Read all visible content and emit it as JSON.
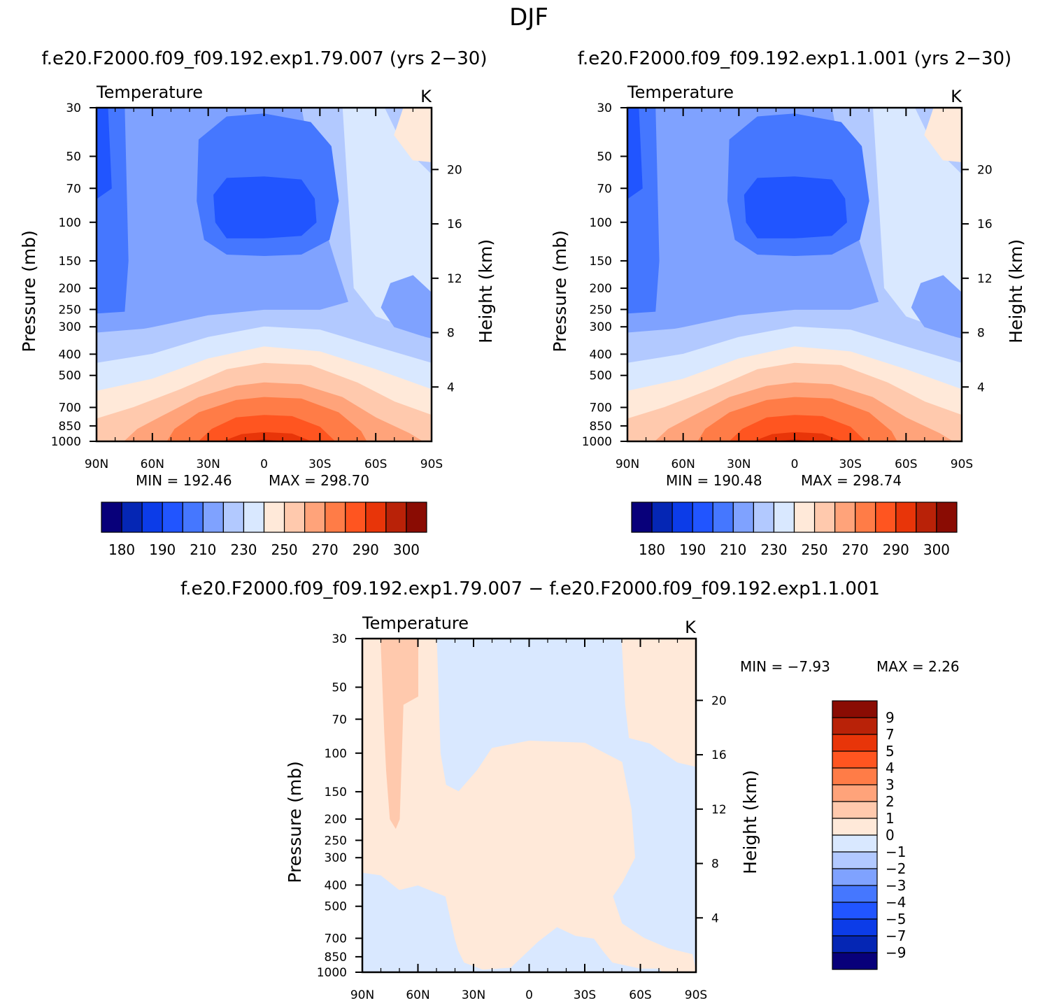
{
  "figure": {
    "title": "DJF",
    "subtitle_left": "f.e20.F2000.f09_f09.192.exp1.79.007 (yrs 2−30)",
    "subtitle_right": "f.e20.F2000.f09_f09.192.exp1.1.001 (yrs 2−30)",
    "diff_title": "f.e20.F2000.f09_f09.192.exp1.79.007 − f.e20.F2000.f09_f09.192.exp1.1.001"
  },
  "colors": {
    "abs_levels": [
      "#08007a",
      "#0526b4",
      "#0c3ce8",
      "#2155ff",
      "#4577ff",
      "#7fa2ff",
      "#b2c9ff",
      "#d9e8ff",
      "#ffe9d9",
      "#ffc9ad",
      "#ffa37a",
      "#ff7c47",
      "#ff5520",
      "#e83509",
      "#b92208",
      "#8a0c03"
    ],
    "diff_levels": [
      "#08007a",
      "#0526b4",
      "#0c3ce8",
      "#2155ff",
      "#4577ff",
      "#7fa2ff",
      "#b2c9ff",
      "#d9e8ff",
      "#ffe9d9",
      "#ffc9ad",
      "#ffa37a",
      "#ff7c47",
      "#ff5520",
      "#e83509",
      "#b92208",
      "#8a0c03"
    ]
  },
  "chart_data": [
    {
      "type": "heatmap",
      "panel": "left",
      "title": "Temperature",
      "units": "K",
      "ylabel": "Pressure (mb)",
      "ylabel_right": "Height (km)",
      "x_ticks": [
        "90N",
        "60N",
        "30N",
        "0",
        "30S",
        "60S",
        "90S"
      ],
      "x_range": [
        90,
        -90
      ],
      "y_ticks": [
        "30",
        "50",
        "70",
        "100",
        "150",
        "200",
        "250",
        "300",
        "400",
        "500",
        "700",
        "850",
        "1000"
      ],
      "y_range_mb": [
        30,
        1000
      ],
      "height_ticks_km": [
        "20",
        "16",
        "12",
        "8",
        "4"
      ],
      "min_text": "MIN = 192.46",
      "max_text": "MAX = 298.70",
      "min": 192.46,
      "max": 298.7,
      "colorbar_labels": [
        "180",
        "190",
        "210",
        "230",
        "250",
        "270",
        "290",
        "300"
      ]
    },
    {
      "type": "heatmap",
      "panel": "right",
      "title": "Temperature",
      "units": "K",
      "ylabel": "Pressure (mb)",
      "ylabel_right": "Height (km)",
      "x_ticks": [
        "90N",
        "60N",
        "30N",
        "0",
        "30S",
        "60S",
        "90S"
      ],
      "x_range": [
        90,
        -90
      ],
      "y_ticks": [
        "30",
        "50",
        "70",
        "100",
        "150",
        "200",
        "250",
        "300",
        "400",
        "500",
        "700",
        "850",
        "1000"
      ],
      "y_range_mb": [
        30,
        1000
      ],
      "height_ticks_km": [
        "20",
        "16",
        "12",
        "8",
        "4"
      ],
      "min_text": "MIN = 190.48",
      "max_text": "MAX = 298.74",
      "min": 190.48,
      "max": 298.74,
      "colorbar_labels": [
        "180",
        "190",
        "210",
        "230",
        "250",
        "270",
        "290",
        "300"
      ]
    },
    {
      "type": "heatmap",
      "panel": "difference",
      "title": "Temperature",
      "units": "K",
      "ylabel": "Pressure (mb)",
      "ylabel_right": "Height (km)",
      "x_ticks": [
        "90N",
        "60N",
        "30N",
        "0",
        "30S",
        "60S",
        "90S"
      ],
      "x_range": [
        90,
        -90
      ],
      "y_ticks": [
        "30",
        "50",
        "70",
        "100",
        "150",
        "200",
        "250",
        "300",
        "400",
        "500",
        "700",
        "850",
        "1000"
      ],
      "y_range_mb": [
        30,
        1000
      ],
      "height_ticks_km": [
        "20",
        "16",
        "12",
        "8",
        "4"
      ],
      "min_text": "MIN =  −7.93",
      "max_text": "MAX =    2.26",
      "min": -7.93,
      "max": 2.26,
      "colorbar_labels": [
        "9",
        "7",
        "5",
        "4",
        "3",
        "2",
        "1",
        "0",
        "−1",
        "−2",
        "−3",
        "−4",
        "−5",
        "−7",
        "−9"
      ]
    }
  ]
}
